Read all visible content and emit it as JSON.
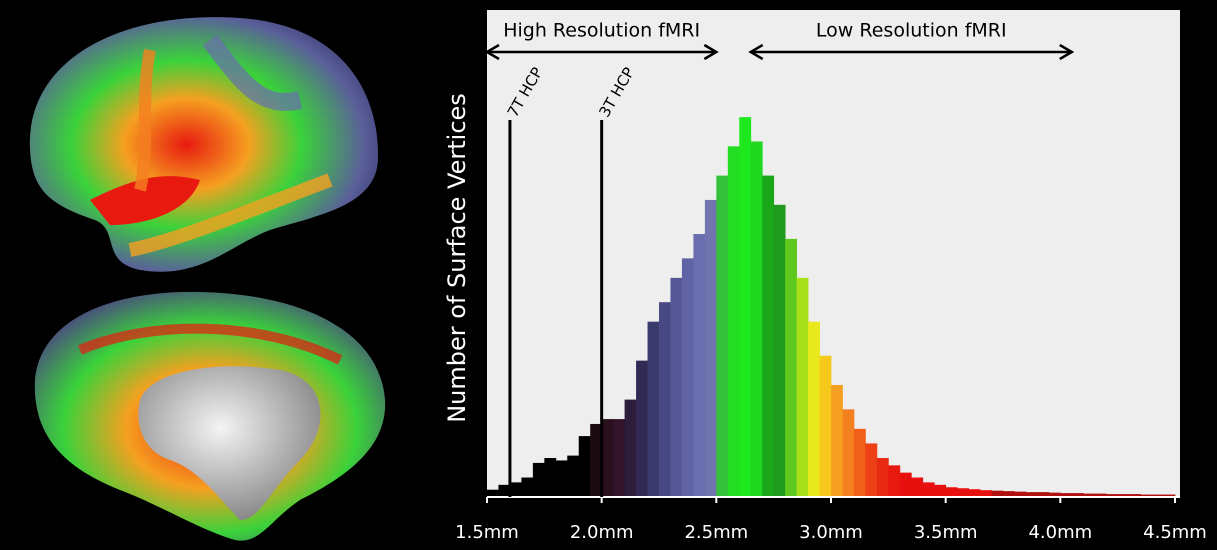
{
  "chart_data": {
    "type": "histogram",
    "y_label": "Number of Surface Vertices",
    "bins": [
      1.5,
      1.55,
      1.6,
      1.65,
      1.7,
      1.75,
      1.8,
      1.85,
      1.9,
      1.95,
      2.0,
      2.05,
      2.1,
      2.15,
      2.2,
      2.25,
      2.3,
      2.35,
      2.4,
      2.45,
      2.5,
      2.55,
      2.6,
      2.65,
      2.7,
      2.75,
      2.8,
      2.85,
      2.9,
      2.95,
      3.0,
      3.05,
      3.1,
      3.15,
      3.2,
      3.25,
      3.3,
      3.35,
      3.4,
      3.45,
      3.5,
      3.55,
      3.6,
      3.65,
      3.7,
      3.75,
      3.8,
      3.85,
      3.9,
      3.95,
      4.0,
      4.05,
      4.1,
      4.15,
      4.2,
      4.25,
      4.3,
      4.35,
      4.4,
      4.45,
      4.5
    ],
    "values": [
      1.5,
      2.5,
      3,
      4,
      7,
      8,
      7.5,
      8.5,
      12.5,
      15,
      16,
      16,
      20,
      28,
      36,
      40,
      45,
      49,
      54,
      61,
      66,
      72,
      78,
      73,
      66,
      60,
      53,
      45,
      36,
      29,
      23,
      18,
      14,
      11,
      8,
      6.5,
      5,
      4,
      3,
      2.5,
      2,
      1.8,
      1.6,
      1.4,
      1.3,
      1.2,
      1.1,
      1,
      1,
      0.9,
      0.8,
      0.8,
      0.7,
      0.7,
      0.6,
      0.6,
      0.6,
      0.5,
      0.5,
      0.5
    ],
    "colors": [
      "#000000",
      "#000000",
      "#000000",
      "#000000",
      "#000000",
      "#000000",
      "#000000",
      "#000000",
      "#000000",
      "#1a0a10",
      "#2a0f1c",
      "#33142a",
      "#2c1d3a",
      "#322a55",
      "#3b3a6e",
      "#474884",
      "#555796",
      "#6064a5",
      "#6a6eae",
      "#7075b0",
      "#35c23a",
      "#22dd22",
      "#1ee81e",
      "#20d820",
      "#1aa81a",
      "#1f9a1f",
      "#5fc81f",
      "#a8e01a",
      "#e8e81a",
      "#f5c81a",
      "#f5a020",
      "#f58020",
      "#f06018",
      "#ee4015",
      "#e82a12",
      "#e81a10",
      "#e8100e",
      "#e8100e",
      "#e8100e",
      "#e8100e",
      "#e8100e",
      "#e8100e",
      "#e8100e",
      "#e8100e",
      "#b01010",
      "#b01010",
      "#b01010",
      "#b01010",
      "#b01010",
      "#b01010",
      "#b01010",
      "#b01010",
      "#b01010",
      "#b01010",
      "#b01010",
      "#b01010",
      "#b01010",
      "#b01010",
      "#b01010",
      "#b01010"
    ],
    "xlim": [
      1.5,
      4.5
    ],
    "ylim": [
      0,
      100
    ],
    "xticks": [
      {
        "value": 1.5,
        "label": "1.5mm"
      },
      {
        "value": 2.0,
        "label": "2.0mm"
      },
      {
        "value": 2.5,
        "label": "2.5mm"
      },
      {
        "value": 3.0,
        "label": "3.0mm"
      },
      {
        "value": 3.5,
        "label": "3.5mm"
      },
      {
        "value": 4.0,
        "label": "4.0mm"
      },
      {
        "value": 4.5,
        "label": "4.5mm"
      }
    ],
    "range_annotations": [
      {
        "label": "High Resolution fMRI",
        "range": [
          1.5,
          2.5
        ]
      },
      {
        "label": "Low Resolution fMRI",
        "range": [
          2.65,
          4.05
        ]
      }
    ],
    "markers": [
      {
        "label": "7T HCP",
        "x": 1.6
      },
      {
        "label": "3T HCP",
        "x": 2.0
      }
    ]
  }
}
